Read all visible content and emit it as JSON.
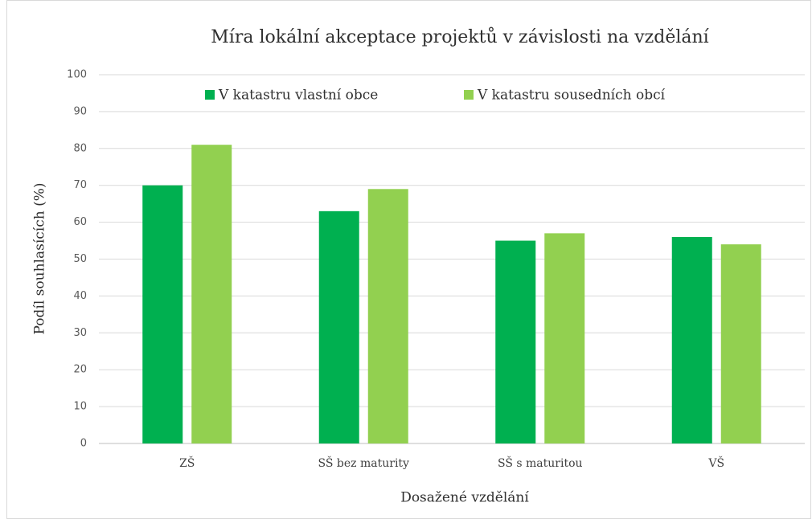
{
  "chart_data": {
    "type": "bar",
    "title": "Míra lokální akceptace projektů v závislosti na vzdělání",
    "x_label": "Dosažené vzdělání",
    "y_label": "Podíl souhlasících (%)",
    "categories": [
      "ZŠ",
      "SŠ bez maturity",
      "SŠ s maturitou",
      "VŠ"
    ],
    "series": [
      {
        "name": "V katastru vlastní obce",
        "color": "#00b050",
        "values": [
          70,
          63,
          55,
          56
        ]
      },
      {
        "name": "V katastru sousedních obcí",
        "color": "#92d050",
        "values": [
          81,
          69,
          57,
          54
        ]
      }
    ],
    "ylim": [
      0,
      100
    ],
    "yticks": [
      0,
      10,
      20,
      30,
      40,
      50,
      60,
      70,
      80,
      90,
      100
    ],
    "grid": true,
    "legend": "top"
  }
}
